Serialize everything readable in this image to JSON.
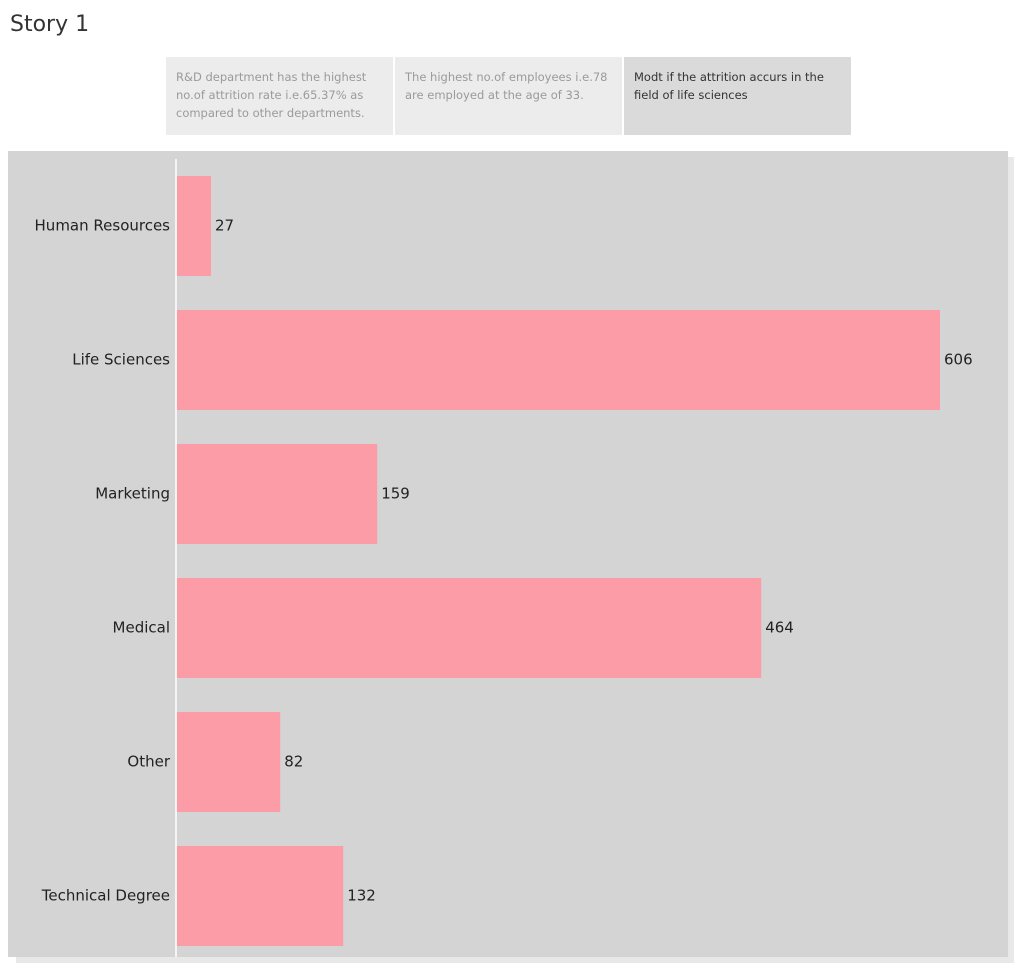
{
  "story": {
    "title": "Story 1",
    "points": [
      {
        "text": "R&D department has the highest no.of attrition rate i.e.65.37% as compared to other departments."
      },
      {
        "text": "The highest no.of employees i.e.78 are employed at the age of 33."
      },
      {
        "text": "Modt if the attrition accurs in the field of life sciences"
      }
    ],
    "active_point": 2
  },
  "colors": {
    "bar": "#fc9ca7",
    "panel_background": "#d4d4d4",
    "axis_line": "#ffffff"
  },
  "chart_data": {
    "type": "bar",
    "orientation": "horizontal",
    "categories": [
      "Human Resources",
      "Life Sciences",
      "Marketing",
      "Medical",
      "Other",
      "Technical Degree"
    ],
    "values": [
      27,
      606,
      159,
      464,
      82,
      132
    ],
    "data_labels": [
      "27",
      "606",
      "159",
      "464",
      "82",
      "132"
    ],
    "title": "",
    "xlabel": "",
    "ylabel": "",
    "xlim": [
      0,
      606
    ],
    "grid": false,
    "legend": "none"
  }
}
